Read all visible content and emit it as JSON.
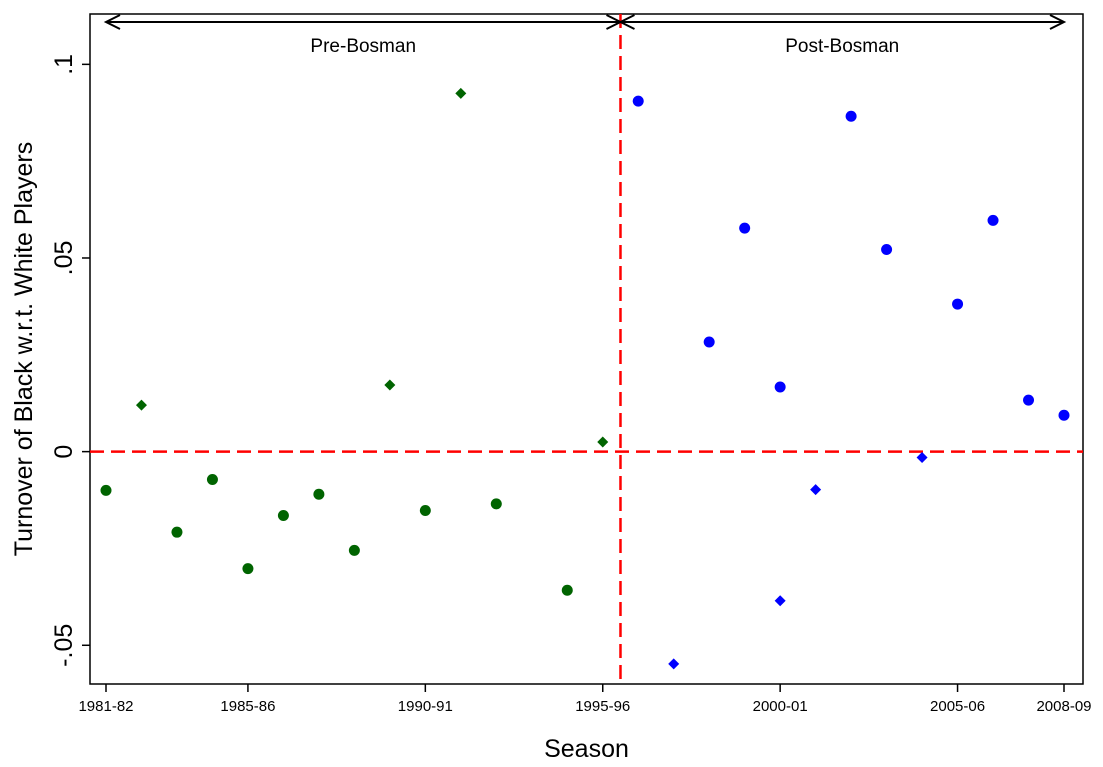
{
  "chart_data": {
    "type": "scatter",
    "title": "",
    "xlabel": "Season",
    "ylabel": "Turnover of Black w.r.t. White Players",
    "xlim": [
      1981,
      2008
    ],
    "ylim": [
      -0.06,
      0.113
    ],
    "x_ticks": [
      {
        "value": 1981,
        "label": "1981-82"
      },
      {
        "value": 1985,
        "label": "1985-86"
      },
      {
        "value": 1990,
        "label": "1990-91"
      },
      {
        "value": 1995,
        "label": "1995-96"
      },
      {
        "value": 2000,
        "label": "2000-01"
      },
      {
        "value": 2005,
        "label": "2005-06"
      },
      {
        "value": 2008,
        "label": "2008-09"
      }
    ],
    "y_ticks": [
      {
        "value": -0.05,
        "label": "-.05"
      },
      {
        "value": 0,
        "label": "0"
      },
      {
        "value": 0.05,
        "label": ".05"
      },
      {
        "value": 0.1,
        "label": ".1"
      }
    ],
    "grid": false,
    "reference_lines": [
      {
        "orientation": "horizontal",
        "value": 0,
        "color": "#ff0000",
        "style": "dashed"
      },
      {
        "orientation": "vertical",
        "value": 1995.5,
        "color": "#ff0000",
        "style": "dashed"
      }
    ],
    "regions": [
      {
        "label": "Pre-Bosman",
        "from": 1981,
        "to": 1995.5
      },
      {
        "label": "Post-Bosman",
        "from": 1995.5,
        "to": 2008
      }
    ],
    "series": [
      {
        "color": "#006400",
        "marker": "circle",
        "points": [
          {
            "x": 1981,
            "y": -0.01
          },
          {
            "x": 1983,
            "y": -0.0208
          },
          {
            "x": 1984,
            "y": -0.0072
          },
          {
            "x": 1985,
            "y": -0.0302
          },
          {
            "x": 1986,
            "y": -0.0165
          },
          {
            "x": 1987,
            "y": -0.011
          },
          {
            "x": 1988,
            "y": -0.0255
          },
          {
            "x": 1990,
            "y": -0.0152
          },
          {
            "x": 1992,
            "y": -0.0135
          },
          {
            "x": 1994,
            "y": -0.0358
          }
        ]
      },
      {
        "color": "#006400",
        "marker": "diamond",
        "points": [
          {
            "x": 1982,
            "y": 0.012
          },
          {
            "x": 1989,
            "y": 0.0172
          },
          {
            "x": 1991,
            "y": 0.0925
          },
          {
            "x": 1995,
            "y": 0.0025
          }
        ]
      },
      {
        "color": "#0000ff",
        "marker": "circle",
        "points": [
          {
            "x": 1996,
            "y": 0.0905
          },
          {
            "x": 1998,
            "y": 0.0283
          },
          {
            "x": 1999,
            "y": 0.0577
          },
          {
            "x": 2000,
            "y": 0.0167
          },
          {
            "x": 2002,
            "y": 0.0866
          },
          {
            "x": 2003,
            "y": 0.0522
          },
          {
            "x": 2005,
            "y": 0.0381
          },
          {
            "x": 2006,
            "y": 0.0597
          },
          {
            "x": 2007,
            "y": 0.0133
          },
          {
            "x": 2008,
            "y": 0.0094
          }
        ]
      },
      {
        "color": "#0000ff",
        "marker": "diamond",
        "points": [
          {
            "x": 1997,
            "y": -0.0548
          },
          {
            "x": 2000,
            "y": -0.0385
          },
          {
            "x": 2001,
            "y": -0.0098
          },
          {
            "x": 2004,
            "y": -0.0015
          }
        ]
      }
    ]
  }
}
